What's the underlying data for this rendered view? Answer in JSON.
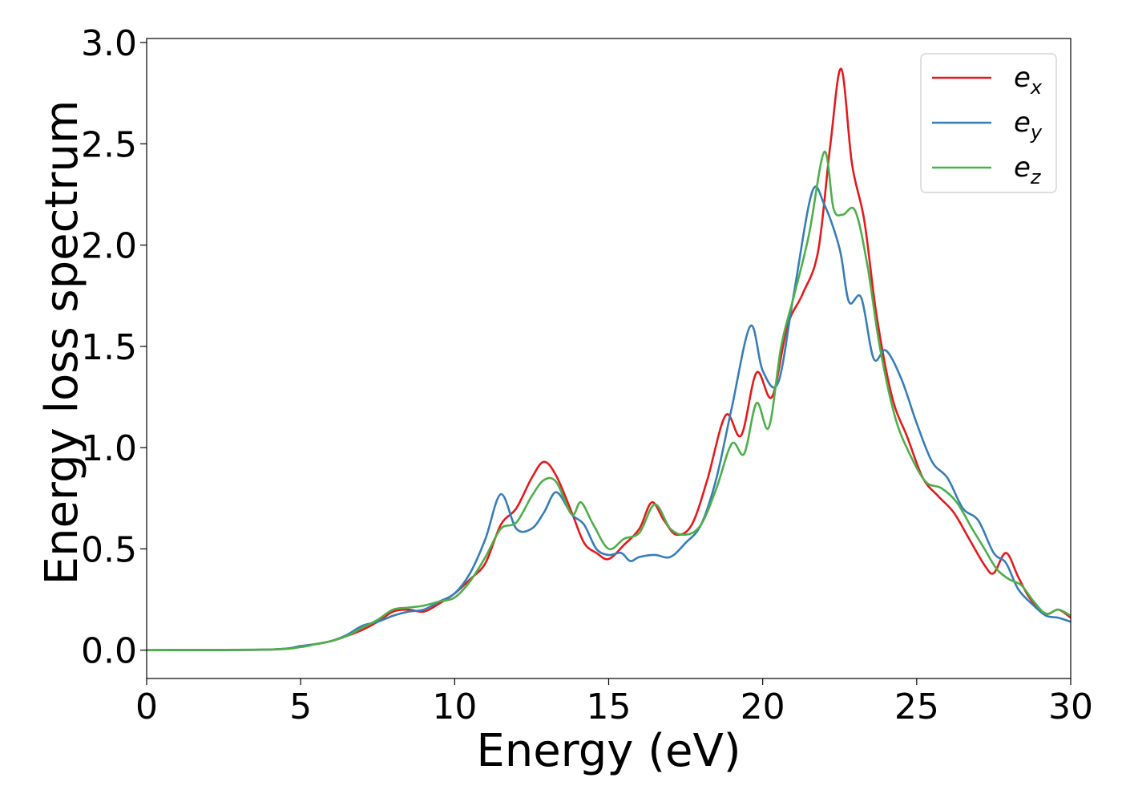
{
  "chart_data": {
    "type": "line",
    "title": "",
    "xlabel": "Energy (eV)",
    "ylabel": "Energy loss spectrum",
    "xlim": [
      0,
      30
    ],
    "ylim": [
      -0.14,
      3.02
    ],
    "xticks": [
      0,
      5,
      10,
      15,
      20,
      25,
      30
    ],
    "yticks": [
      0.0,
      0.5,
      1.0,
      1.5,
      2.0,
      2.5,
      3.0
    ],
    "xtick_labels": [
      "0",
      "5",
      "10",
      "15",
      "20",
      "25",
      "30"
    ],
    "ytick_labels": [
      "0.0",
      "0.5",
      "1.0",
      "1.5",
      "2.0",
      "2.5",
      "3.0"
    ],
    "grid": false,
    "legend_position": "top-right",
    "series": [
      {
        "name": "e_x",
        "label_base": "e",
        "label_sub": "x",
        "color": "#e41a1c",
        "x": [
          0,
          4,
          5,
          5.5,
          6,
          6.5,
          7,
          7.5,
          8,
          8.5,
          9,
          9.5,
          10,
          10.5,
          11,
          11.5,
          12,
          12.5,
          12.9,
          13.3,
          13.8,
          14.2,
          14.6,
          15,
          15.5,
          16,
          16.4,
          16.8,
          17.2,
          17.7,
          18.2,
          18.8,
          19.3,
          19.8,
          20.3,
          20.8,
          21.3,
          21.8,
          22.2,
          22.55,
          22.9,
          23.3,
          23.7,
          24.2,
          24.7,
          25.2,
          25.7,
          26.2,
          26.7,
          27.2,
          27.5,
          27.9,
          28.3,
          28.7,
          29.2,
          29.6,
          30
        ],
        "y": [
          0,
          0.003,
          0.02,
          0.03,
          0.045,
          0.07,
          0.1,
          0.14,
          0.19,
          0.2,
          0.19,
          0.23,
          0.28,
          0.35,
          0.43,
          0.62,
          0.7,
          0.85,
          0.93,
          0.86,
          0.68,
          0.53,
          0.48,
          0.45,
          0.52,
          0.6,
          0.73,
          0.64,
          0.57,
          0.62,
          0.84,
          1.16,
          1.06,
          1.37,
          1.25,
          1.6,
          1.76,
          1.97,
          2.5,
          2.87,
          2.4,
          2.12,
          1.65,
          1.25,
          1.05,
          0.85,
          0.76,
          0.68,
          0.55,
          0.42,
          0.38,
          0.48,
          0.36,
          0.25,
          0.18,
          0.2,
          0.16
        ]
      },
      {
        "name": "e_y",
        "label_base": "e",
        "label_sub": "y",
        "color": "#377eb8",
        "x": [
          0,
          4,
          5,
          5.5,
          6,
          6.5,
          7,
          7.5,
          8,
          8.5,
          9,
          9.5,
          10,
          10.5,
          11,
          11.5,
          12,
          12.5,
          12.9,
          13.3,
          13.8,
          14.2,
          14.6,
          15,
          15.4,
          15.7,
          16,
          16.5,
          17,
          17.5,
          18,
          18.5,
          19,
          19.6,
          20,
          20.5,
          21,
          21.6,
          22,
          22.5,
          22.8,
          23.2,
          23.6,
          24,
          24.5,
          25,
          25.5,
          26,
          26.5,
          27,
          27.5,
          27.9,
          28.3,
          28.8,
          29.2,
          29.6,
          30
        ],
        "y": [
          0,
          0.003,
          0.02,
          0.03,
          0.045,
          0.075,
          0.12,
          0.14,
          0.17,
          0.19,
          0.2,
          0.24,
          0.28,
          0.38,
          0.55,
          0.77,
          0.6,
          0.6,
          0.68,
          0.78,
          0.67,
          0.62,
          0.5,
          0.47,
          0.48,
          0.44,
          0.46,
          0.47,
          0.46,
          0.53,
          0.62,
          0.85,
          1.2,
          1.6,
          1.38,
          1.32,
          1.75,
          2.26,
          2.2,
          1.98,
          1.72,
          1.74,
          1.44,
          1.48,
          1.34,
          1.12,
          0.93,
          0.85,
          0.7,
          0.64,
          0.48,
          0.43,
          0.3,
          0.22,
          0.17,
          0.16,
          0.14
        ]
      },
      {
        "name": "e_z",
        "label_base": "e",
        "label_sub": "z",
        "color": "#4daf4a",
        "x": [
          0,
          4,
          5,
          5.5,
          6,
          6.5,
          7,
          7.5,
          8,
          8.5,
          9,
          9.5,
          10,
          10.5,
          11,
          11.5,
          12,
          12.5,
          12.9,
          13.3,
          13.8,
          14.1,
          14.5,
          15,
          15.5,
          16,
          16.5,
          17,
          17.5,
          18,
          18.5,
          19,
          19.4,
          19.8,
          20.2,
          20.6,
          21,
          21.5,
          22,
          22.3,
          22.6,
          23,
          23.4,
          23.8,
          24.3,
          24.8,
          25.3,
          25.8,
          26.3,
          26.8,
          27.2,
          27.6,
          28,
          28.4,
          28.8,
          29.2,
          29.6,
          30
        ],
        "y": [
          0,
          0.003,
          0.015,
          0.03,
          0.045,
          0.07,
          0.11,
          0.15,
          0.2,
          0.21,
          0.22,
          0.24,
          0.26,
          0.34,
          0.46,
          0.6,
          0.63,
          0.76,
          0.84,
          0.83,
          0.67,
          0.73,
          0.62,
          0.5,
          0.55,
          0.58,
          0.72,
          0.6,
          0.57,
          0.62,
          0.8,
          1.02,
          0.97,
          1.22,
          1.1,
          1.5,
          1.74,
          2.05,
          2.46,
          2.18,
          2.15,
          2.17,
          1.9,
          1.5,
          1.15,
          0.96,
          0.83,
          0.8,
          0.73,
          0.6,
          0.5,
          0.4,
          0.35,
          0.32,
          0.24,
          0.18,
          0.2,
          0.17
        ]
      }
    ]
  }
}
